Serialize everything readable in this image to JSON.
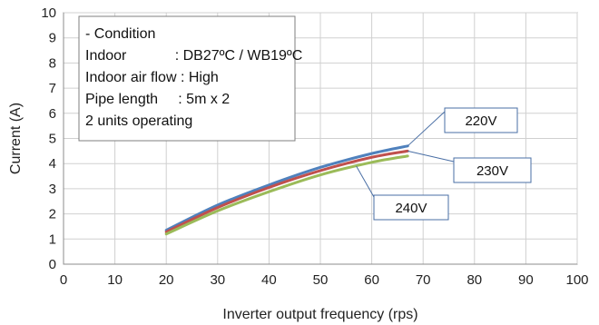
{
  "chart_data": {
    "type": "line",
    "xlabel": "Inverter output frequency (rps)",
    "ylabel": "Current (A)",
    "xlim": [
      0,
      100
    ],
    "ylim": [
      0,
      10
    ],
    "x_ticks": [
      0,
      10,
      20,
      30,
      40,
      50,
      60,
      70,
      80,
      90,
      100
    ],
    "y_ticks": [
      0,
      1,
      2,
      3,
      4,
      5,
      6,
      7,
      8,
      9,
      10
    ],
    "grid": true,
    "x": [
      20,
      30,
      40,
      50,
      60,
      67
    ],
    "series": [
      {
        "name": "220V",
        "color": "#4f81bd",
        "values": [
          1.35,
          2.35,
          3.15,
          3.85,
          4.4,
          4.7
        ]
      },
      {
        "name": "230V",
        "color": "#c0504d",
        "values": [
          1.28,
          2.25,
          3.05,
          3.72,
          4.25,
          4.5
        ]
      },
      {
        "name": "240V",
        "color": "#9bbb59",
        "values": [
          1.2,
          2.12,
          2.88,
          3.55,
          4.05,
          4.3
        ]
      }
    ],
    "annotations": {
      "condition_lines": [
        "- Condition",
        "Indoor            : DB27ºC / WB19ºC",
        "Indoor air flow : High",
        "Pipe length     : 5m x 2",
        "2 units operating"
      ],
      "callouts": [
        "220V",
        "230V",
        "240V"
      ]
    }
  }
}
